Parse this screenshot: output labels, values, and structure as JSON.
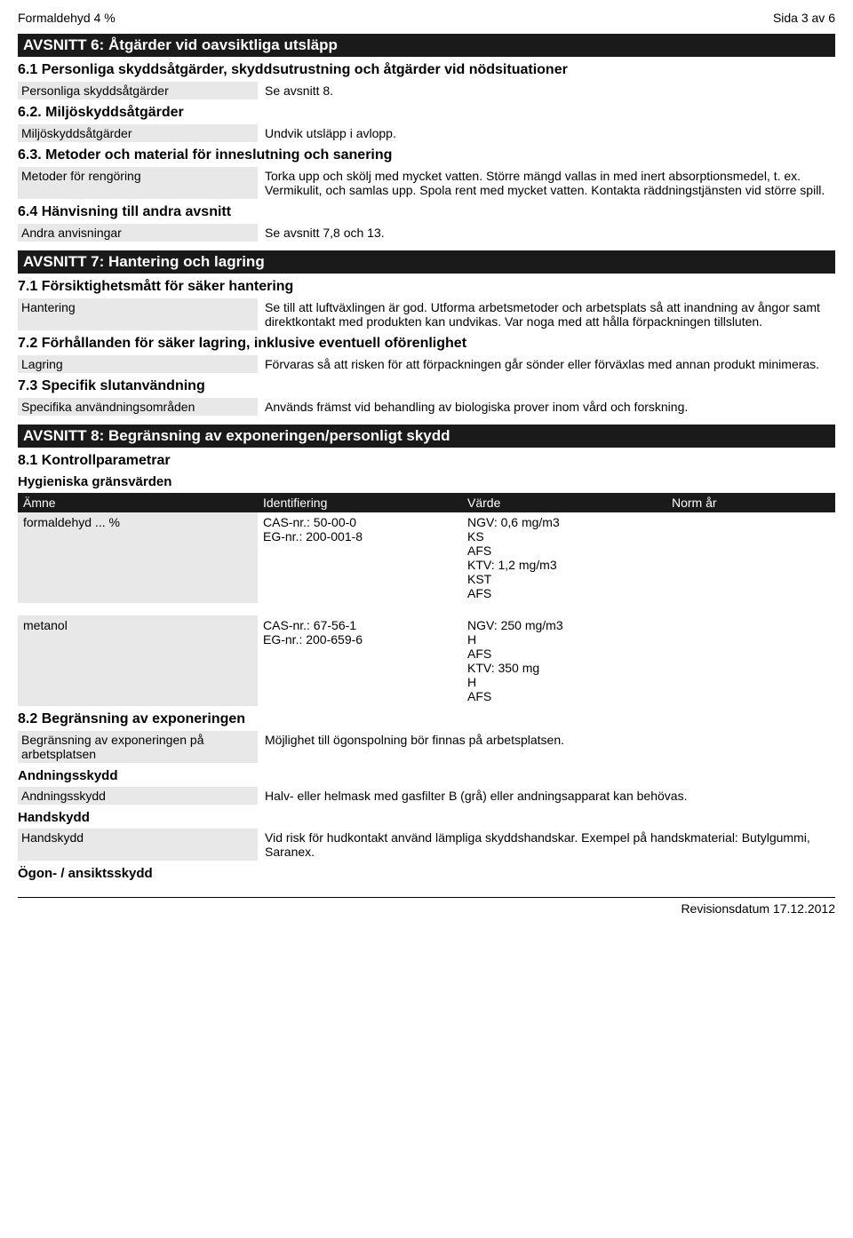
{
  "header": {
    "left": "Formaldehyd 4 %",
    "right": "Sida 3 av 6"
  },
  "s6": {
    "title": "AVSNITT 6: Åtgärder vid oavsiktliga utsläpp",
    "s61": {
      "title": "6.1 Personliga skyddsåtgärder, skyddsutrustning och åtgärder vid nödsituationer",
      "label": "Personliga skyddsåtgärder",
      "value": "Se avsnitt 8."
    },
    "s62": {
      "title": "6.2. Miljöskyddsåtgärder",
      "label": "Miljöskyddsåtgärder",
      "value": "Undvik utsläpp i avlopp."
    },
    "s63": {
      "title": "6.3. Metoder och material för inneslutning och sanering",
      "label": "Metoder för rengöring",
      "value": "Torka upp och skölj med mycket vatten. Större mängd vallas in med inert absorptionsmedel, t. ex. Vermikulit, och samlas upp. Spola rent med mycket vatten. Kontakta räddningstjänsten vid större spill."
    },
    "s64": {
      "title": "6.4 Hänvisning till andra avsnitt",
      "label": "Andra anvisningar",
      "value": "Se avsnitt 7,8 och 13."
    }
  },
  "s7": {
    "title": "AVSNITT 7: Hantering och lagring",
    "s71": {
      "title": "7.1 Försiktighetsmått för säker hantering",
      "label": "Hantering",
      "value": "Se till att luftväxlingen är god. Utforma arbetsmetoder och arbetsplats så att inandning av ångor samt direktkontakt med produkten kan undvikas. Var noga med att hålla förpackningen tillsluten."
    },
    "s72": {
      "title": "7.2 Förhållanden för säker lagring, inklusive eventuell oförenlighet",
      "label": "Lagring",
      "value": "Förvaras så att risken för att förpackningen går sönder eller förväxlas med annan produkt minimeras."
    },
    "s73": {
      "title": "7.3 Specifik slutanvändning",
      "label": "Specifika användningsområden",
      "value": "Används främst vid behandling av biologiska prover inom vård och forskning."
    }
  },
  "s8": {
    "title": "AVSNITT 8: Begränsning av exponeringen/personligt skydd",
    "s81title": "8.1 Kontrollparametrar",
    "hygtitle": "Hygieniska gränsvärden",
    "columns": [
      "Ämne",
      "Identifiering",
      "Värde",
      "Norm år"
    ],
    "rows": [
      {
        "amne": "formaldehyd ... %",
        "ident": "CAS-nr.: 50-00-0\nEG-nr.: 200-001-8",
        "varde": "NGV: 0,6 mg/m3\nKS\nAFS\nKTV: 1,2 mg/m3\nKST\nAFS",
        "norm": ""
      },
      {
        "amne": "metanol",
        "ident": "CAS-nr.: 67-56-1\nEG-nr.: 200-659-6",
        "varde": "NGV: 250 mg/m3\nH\nAFS\nKTV: 350 mg\nH\nAFS",
        "norm": ""
      }
    ],
    "s82": {
      "title": "8.2 Begränsning av exponeringen",
      "label": "Begränsning av exponeringen på arbetsplatsen",
      "value": "Möjlighet till ögonspolning bör finnas på arbetsplatsen."
    },
    "and": {
      "title": "Andningsskydd",
      "label": "Andningsskydd",
      "value": "Halv- eller helmask med gasfilter B (grå) eller andningsapparat kan behövas."
    },
    "hand": {
      "title": "Handskydd",
      "label": "Handskydd",
      "value": "Vid risk för hudkontakt använd lämpliga skyddshandskar. Exempel på handskmaterial: Butylgummi, Saranex."
    },
    "ogon": {
      "title": "Ögon- / ansiktsskydd"
    }
  },
  "footer": "Revisionsdatum 17.12.2012"
}
